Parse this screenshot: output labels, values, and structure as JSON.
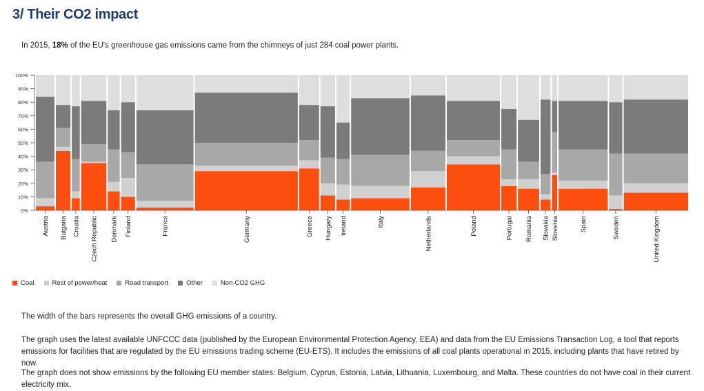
{
  "title": "3/ Their CO2 impact",
  "intro": {
    "before": "In 2015, ",
    "bold": "18%",
    "after": " of the EU's greenhouse gas emissions came from the chimneys of just 284 coal power plants."
  },
  "colors": {
    "coal": "#fc4e0e",
    "rest_power": "#d0d0d0",
    "road": "#a8a8a8",
    "other": "#7b7b7b",
    "non_co2": "#dedede"
  },
  "chart_data": {
    "type": "bar",
    "variant": "marimekko-stacked-percent",
    "ylim": [
      0,
      100
    ],
    "y_ticks": [
      "0%",
      "10%",
      "20%",
      "30%",
      "40%",
      "50%",
      "60%",
      "70%",
      "80%",
      "90%",
      "100%"
    ],
    "legend_position": "bottom-left",
    "series": [
      {
        "name": "Coal",
        "key": "coal"
      },
      {
        "name": "Rest of power/heat",
        "key": "rest_power"
      },
      {
        "name": "Road transport",
        "key": "road"
      },
      {
        "name": "Other",
        "key": "other"
      },
      {
        "name": "Non-CO2 GHG",
        "key": "non_co2"
      }
    ],
    "countries": [
      {
        "name": "Austria",
        "width_share": 28,
        "coal": 3,
        "rest_power": 6,
        "road": 27,
        "other": 48,
        "non_co2": 16
      },
      {
        "name": "Bulgaria",
        "width_share": 22,
        "coal": 44,
        "rest_power": 3,
        "road": 14,
        "other": 17,
        "non_co2": 22
      },
      {
        "name": "Croatia",
        "width_share": 12,
        "coal": 9,
        "rest_power": 5,
        "road": 24,
        "other": 39,
        "non_co2": 23
      },
      {
        "name": "Czech Republic",
        "width_share": 38,
        "coal": 35,
        "rest_power": 1,
        "road": 13,
        "other": 32,
        "non_co2": 19
      },
      {
        "name": "Denmark",
        "width_share": 18,
        "coal": 14,
        "rest_power": 7,
        "road": 24,
        "other": 29,
        "non_co2": 26
      },
      {
        "name": "Finland",
        "width_share": 21,
        "coal": 10,
        "rest_power": 14,
        "road": 19,
        "other": 37,
        "non_co2": 20
      },
      {
        "name": "France",
        "width_share": 86,
        "coal": 2,
        "rest_power": 5,
        "road": 27,
        "other": 40,
        "non_co2": 26
      },
      {
        "name": "Germany",
        "width_share": 155,
        "coal": 29,
        "rest_power": 4,
        "road": 17,
        "other": 37,
        "non_co2": 13
      },
      {
        "name": "Greece",
        "width_share": 30,
        "coal": 31,
        "rest_power": 6,
        "road": 15,
        "other": 26,
        "non_co2": 22
      },
      {
        "name": "Hungary",
        "width_share": 22,
        "coal": 11,
        "rest_power": 9,
        "road": 19,
        "other": 38,
        "non_co2": 23
      },
      {
        "name": "Ireland",
        "width_share": 20,
        "coal": 8,
        "rest_power": 11,
        "road": 19,
        "other": 27,
        "non_co2": 35
      },
      {
        "name": "Italy",
        "width_share": 88,
        "coal": 9,
        "rest_power": 9,
        "road": 23,
        "other": 42,
        "non_co2": 17
      },
      {
        "name": "Netherlands",
        "width_share": 52,
        "coal": 17,
        "rest_power": 12,
        "road": 15,
        "other": 41,
        "non_co2": 15
      },
      {
        "name": "Poland",
        "width_share": 80,
        "coal": 34,
        "rest_power": 6,
        "road": 12,
        "other": 29,
        "non_co2": 19
      },
      {
        "name": "Portugal",
        "width_share": 23,
        "coal": 18,
        "rest_power": 5,
        "road": 22,
        "other": 30,
        "non_co2": 25
      },
      {
        "name": "Romania",
        "width_share": 32,
        "coal": 16,
        "rest_power": 7,
        "road": 13,
        "other": 31,
        "non_co2": 33
      },
      {
        "name": "Slovakia",
        "width_share": 15,
        "coal": 8,
        "rest_power": 4,
        "road": 15,
        "other": 55,
        "non_co2": 18
      },
      {
        "name": "Slovenia",
        "width_share": 8,
        "coal": 26,
        "rest_power": 2,
        "road": 30,
        "other": 23,
        "non_co2": 19
      },
      {
        "name": "Spain",
        "width_share": 74,
        "coal": 16,
        "rest_power": 6,
        "road": 23,
        "other": 36,
        "non_co2": 19
      },
      {
        "name": "Sweden",
        "width_share": 20,
        "coal": 1,
        "rest_power": 10,
        "road": 31,
        "other": 38,
        "non_co2": 20
      },
      {
        "name": "United Kingdom",
        "width_share": 97,
        "coal": 13,
        "rest_power": 7,
        "road": 22,
        "other": 40,
        "non_co2": 18
      }
    ]
  },
  "legend": {
    "coal": "Coal",
    "rest_power": "Rest of power/heat",
    "road": "Road transport",
    "other": "Other",
    "non_co2": "Non-CO2 GHG"
  },
  "paragraphs": {
    "p1": "The width of the bars represents the overall GHG emissions of a country.",
    "p2": "The graph uses the latest available UNFCCC data (published by the European Environmental Protection Agency, EEA) and data from the EU Emissions Transaction Log, a tool that reports emissions for facilities that are regulated by the EU emissions trading scheme (EU-ETS). It includes the emissions of all coal plants operational in 2015, including plants that have retired by now.",
    "p3": "The graph does not show emissions by the following EU member states: Belgium, Cyprus, Estonia, Latvia, Lithuania, Luxembourg, and Malta. These countries do not have coal in their current electricity mix."
  }
}
